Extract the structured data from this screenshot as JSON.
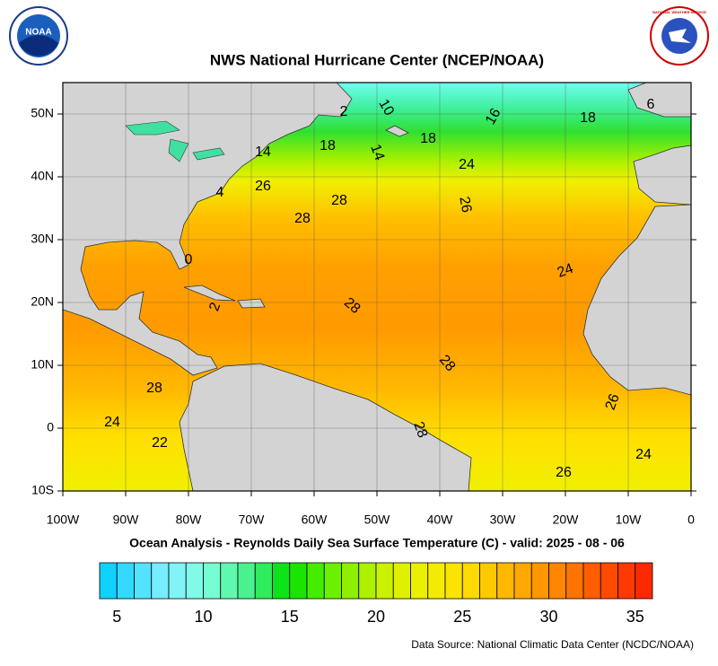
{
  "title": "NWS National Hurricane Center (NCEP/NOAA)",
  "subtitle": "Ocean Analysis - Reynolds Daily Sea Surface Temperature (C) - valid: 2025 - 08 - 06",
  "source": "Data Source: National Climatic Data Center (NCDC/NOAA)",
  "logos": {
    "noaa": "NOAA",
    "nws": "NATIONAL WEATHER SERVICE"
  },
  "lon_labels": [
    "100W",
    "90W",
    "80W",
    "70W",
    "60W",
    "50W",
    "40W",
    "30W",
    "20W",
    "10W",
    "0"
  ],
  "lat_labels": [
    "50N",
    "40N",
    "30N",
    "20N",
    "10N",
    "0",
    "10S"
  ],
  "contour_labels": [
    "10",
    "2",
    "16",
    "18",
    "6",
    "14",
    "18",
    "14",
    "18",
    "24",
    "4",
    "26",
    "28",
    "28",
    "26",
    "0",
    "24",
    "2",
    "28",
    "28",
    "28",
    "26",
    "24",
    "22",
    "28",
    "26",
    "24"
  ],
  "colorbar": {
    "range": [
      4,
      36
    ],
    "ticks": [
      5,
      10,
      15,
      20,
      25,
      30,
      35
    ]
  }
}
